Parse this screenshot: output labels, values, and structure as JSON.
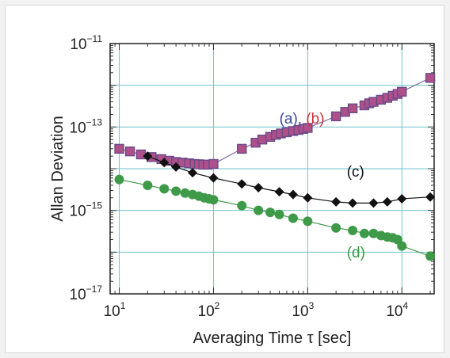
{
  "chart_data": {
    "type": "scatter",
    "xscale": "log",
    "yscale": "log",
    "xlabel": "Averaging Time τ [sec]",
    "ylabel": "Allan Deviation",
    "xlim": [
      8,
      22000
    ],
    "ylim": [
      1e-17,
      1e-11
    ],
    "grid": true,
    "grid_color": "#6cc3cc",
    "x_ticks": [
      {
        "base": "10",
        "exp": "1",
        "value": 10
      },
      {
        "base": "10",
        "exp": "2",
        "value": 100
      },
      {
        "base": "10",
        "exp": "3",
        "value": 1000
      },
      {
        "base": "10",
        "exp": "4",
        "value": 10000
      }
    ],
    "y_ticks": [
      {
        "base": "10",
        "exp": "−11",
        "value": 1e-11
      },
      {
        "base": "10",
        "exp": "−13",
        "value": 1e-13
      },
      {
        "base": "10",
        "exp": "−15",
        "value": 1e-15
      },
      {
        "base": "10",
        "exp": "−17",
        "value": 1e-17
      }
    ],
    "series": [
      {
        "label_parts": [
          {
            "text": "(a),",
            "color": "#3a4a9e"
          },
          {
            "text": " (b)",
            "color": "#d2303a"
          }
        ],
        "marker": "square",
        "color": "#b0508a",
        "edge": "#6a4a8a",
        "x": [
          10,
          13,
          17,
          22,
          28,
          34,
          40,
          47,
          55,
          63,
          70,
          78,
          87,
          100,
          200,
          280,
          330,
          400,
          460,
          520,
          600,
          700,
          800,
          900,
          1000,
          2000,
          2500,
          3000,
          4000,
          4500,
          5000,
          6000,
          7000,
          8000,
          9000,
          10000,
          20000
        ],
        "y": [
          3e-14,
          2.6e-14,
          2.2e-14,
          1.9e-14,
          1.7e-14,
          1.55e-14,
          1.45e-14,
          1.4e-14,
          1.35e-14,
          1.3e-14,
          1.28e-14,
          1.25e-14,
          1.25e-14,
          1.3e-14,
          3e-14,
          4.2e-14,
          5e-14,
          5.8e-14,
          6.5e-14,
          7e-14,
          7.5e-14,
          8e-14,
          8.5e-14,
          9e-14,
          9.5e-14,
          1.8e-13,
          2.3e-13,
          2.8e-13,
          3.3e-13,
          3.7e-13,
          4e-13,
          4.5e-13,
          5e-13,
          5.6e-13,
          6.2e-13,
          7e-13,
          1.5e-12
        ]
      },
      {
        "label": "(c)",
        "label_color": "#111111",
        "marker": "diamond",
        "color": "#111111",
        "x": [
          20,
          30,
          40,
          60,
          100,
          200,
          300,
          500,
          700,
          1000,
          2000,
          3000,
          5000,
          7000,
          10000,
          20000
        ],
        "y": [
          2e-14,
          1.4e-14,
          1.1e-14,
          8e-15,
          6e-15,
          4.3e-15,
          3.5e-15,
          2.8e-15,
          2.4e-15,
          2e-15,
          1.6e-15,
          1.5e-15,
          1.5e-15,
          1.6e-15,
          1.9e-15,
          2.1e-15
        ]
      },
      {
        "label": "(d)",
        "label_color": "#3a9a44",
        "marker": "circle",
        "color": "#3e9a48",
        "x": [
          10,
          20,
          30,
          40,
          50,
          60,
          70,
          80,
          90,
          100,
          200,
          300,
          400,
          500,
          700,
          1000,
          2000,
          3000,
          4000,
          5000,
          6000,
          7000,
          8000,
          9000,
          10000,
          20000
        ],
        "y": [
          5.5e-15,
          4e-15,
          3.3e-15,
          2.9e-15,
          2.6e-15,
          2.4e-15,
          2.2e-15,
          2e-15,
          1.9e-15,
          1.8e-15,
          1.3e-15,
          1e-15,
          9e-16,
          8e-16,
          6.5e-16,
          5.5e-16,
          3.8e-16,
          3.3e-16,
          2.8e-16,
          2.8e-16,
          2.5e-16,
          2.3e-16,
          2.2e-16,
          2e-16,
          1.4e-16,
          8e-17
        ]
      }
    ]
  }
}
